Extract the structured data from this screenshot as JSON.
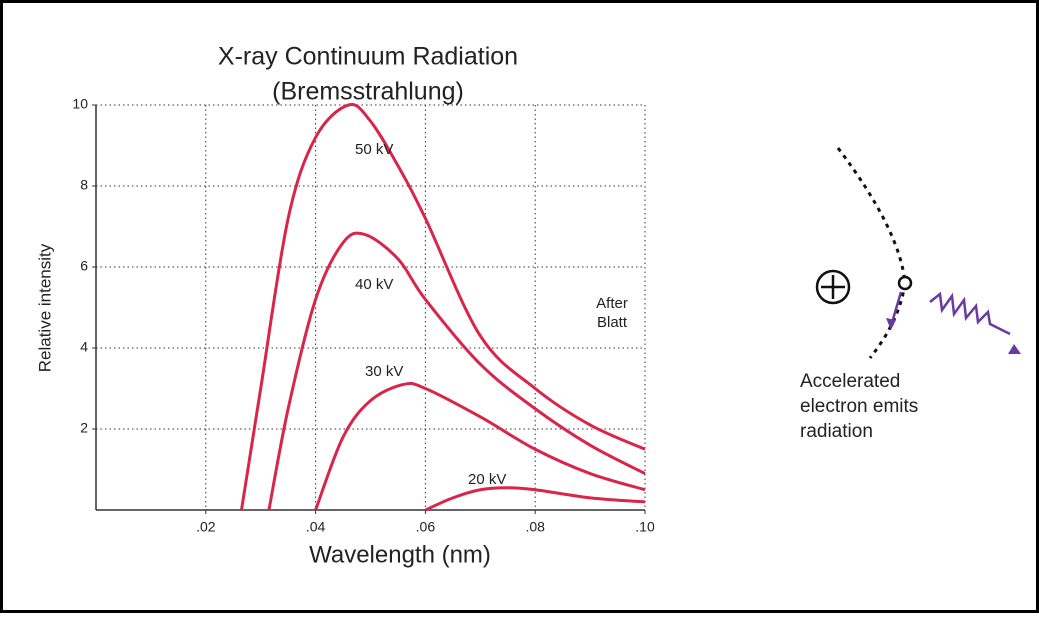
{
  "chart_data": {
    "type": "line",
    "title": "X-ray Continuum Radiation",
    "subtitle": "(Bremsstrahlung)",
    "x_label": "Wavelength (nm)",
    "y_label": "Relative intensity",
    "xlim": [
      0,
      0.1
    ],
    "ylim": [
      0,
      10
    ],
    "xticks": [
      {
        "value": 0.02,
        "label": ".02"
      },
      {
        "value": 0.04,
        "label": ".04"
      },
      {
        "value": 0.06,
        "label": ".06"
      },
      {
        "value": 0.08,
        "label": ".08"
      },
      {
        "value": 0.1,
        "label": ".10"
      }
    ],
    "yticks": [
      2,
      4,
      6,
      8,
      10
    ],
    "grid": true,
    "series": [
      {
        "name": "50 kV",
        "color": "#d8264a",
        "x": [
          0.0265,
          0.03,
          0.035,
          0.04,
          0.046,
          0.05,
          0.055,
          0.06,
          0.07,
          0.08,
          0.09,
          0.1
        ],
        "values": [
          0,
          3,
          7.2,
          9.2,
          10,
          9.6,
          8.5,
          7.2,
          4.3,
          3.0,
          2.1,
          1.5
        ]
      },
      {
        "name": "40 kV",
        "color": "#d8264a",
        "x": [
          0.0315,
          0.035,
          0.04,
          0.045,
          0.049,
          0.055,
          0.06,
          0.07,
          0.08,
          0.09,
          0.1
        ],
        "values": [
          0,
          2.5,
          5.2,
          6.6,
          6.8,
          6.2,
          5.2,
          3.6,
          2.5,
          1.6,
          0.9
        ]
      },
      {
        "name": "30 kV",
        "color": "#d8264a",
        "x": [
          0.04,
          0.045,
          0.05,
          0.056,
          0.06,
          0.07,
          0.08,
          0.09,
          0.1
        ],
        "values": [
          0,
          1.8,
          2.7,
          3.1,
          3.0,
          2.3,
          1.5,
          0.9,
          0.5
        ]
      },
      {
        "name": "20 kV",
        "color": "#d8264a",
        "x": [
          0.06,
          0.065,
          0.07,
          0.075,
          0.08,
          0.09,
          0.1
        ],
        "values": [
          0,
          0.3,
          0.5,
          0.55,
          0.5,
          0.3,
          0.2
        ]
      }
    ],
    "annotation": [
      "After",
      "Blatt"
    ],
    "diagram_caption": [
      "Accelerated",
      "electron emits",
      "radiation"
    ]
  }
}
